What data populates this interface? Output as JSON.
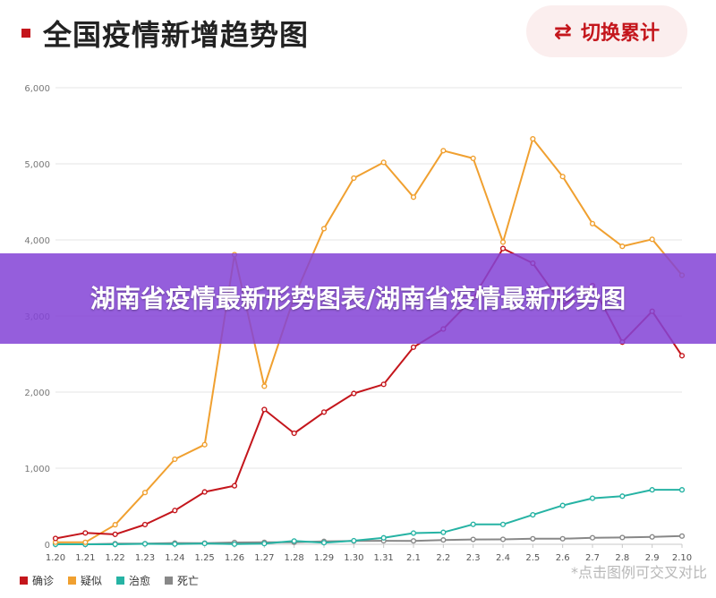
{
  "header": {
    "title": "全国疫情新增趋势图",
    "toggle_label": "切换累计",
    "toggle_icon": "swap-arrows-icon"
  },
  "banner": {
    "text": "湖南省疫情最新形势图表/湖南省疫情最新形势图"
  },
  "footnote": "*点击图例可交叉对比",
  "colors": {
    "accent": "#c4161c",
    "banner": "#8444d6"
  },
  "chart_data": {
    "type": "line",
    "x": [
      "1.20",
      "1.21",
      "1.22",
      "1.23",
      "1.24",
      "1.25",
      "1.26",
      "1.27",
      "1.28",
      "1.29",
      "1.30",
      "1.31",
      "2.1",
      "2.2",
      "2.3",
      "2.4",
      "2.5",
      "2.6",
      "2.7",
      "2.8",
      "2.9",
      "2.10"
    ],
    "ylim": [
      0,
      6000
    ],
    "yticks": [
      "0",
      "1,000",
      "2,000",
      "3,000",
      "4,000",
      "5,000",
      "6,000"
    ],
    "grid": true,
    "legend_position": "bottom-left",
    "series": [
      {
        "name": "确诊",
        "color": "#c4161c",
        "values": [
          77,
          149,
          131,
          259,
          444,
          688,
          769,
          1771,
          1459,
          1737,
          1982,
          2102,
          2590,
          2829,
          3235,
          3887,
          3694,
          3143,
          3399,
          2656,
          3062,
          2478
        ]
      },
      {
        "name": "疑似",
        "color": "#f0a030",
        "values": [
          27,
          26,
          257,
          680,
          1118,
          1309,
          3806,
          2077,
          3248,
          4148,
          4812,
          5019,
          4562,
          5173,
          5072,
          3971,
          5328,
          4833,
          4214,
          3916,
          4008,
          3536
        ]
      },
      {
        "name": "治愈",
        "color": "#26b3a4",
        "values": [
          0,
          0,
          0,
          6,
          3,
          11,
          2,
          9,
          43,
          21,
          47,
          85,
          147,
          157,
          262,
          261,
          387,
          510,
          605,
          632,
          716,
          716
        ]
      },
      {
        "name": "死亡",
        "color": "#888888",
        "values": [
          3,
          0,
          8,
          8,
          16,
          15,
          24,
          26,
          26,
          38,
          43,
          46,
          45,
          57,
          64,
          65,
          73,
          73,
          86,
          89,
          97,
          108
        ]
      }
    ]
  }
}
